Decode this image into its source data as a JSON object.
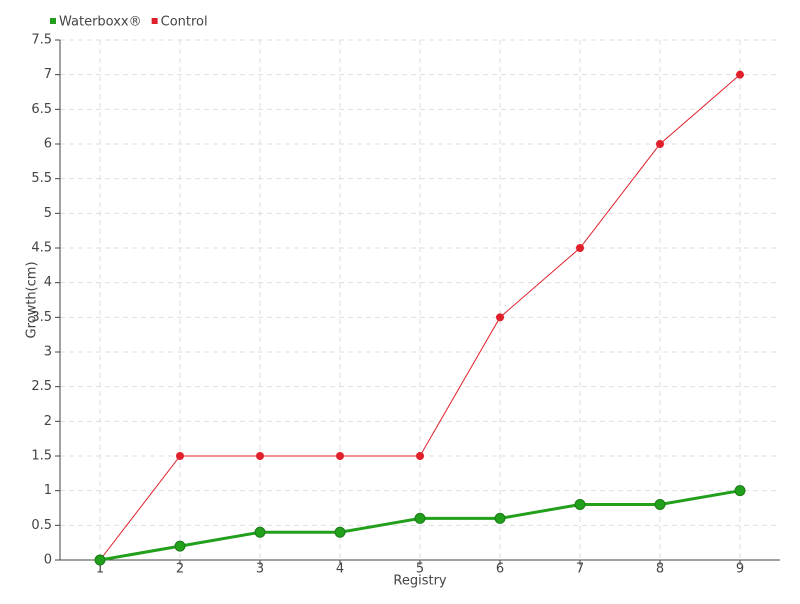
{
  "chart_data": {
    "type": "line",
    "x_label": "Registry",
    "y_label": "Growth(cm)",
    "x": [
      1,
      2,
      3,
      4,
      5,
      6,
      7,
      8,
      9
    ],
    "xlim": [
      0.5,
      9.5
    ],
    "xticks": [
      1,
      2,
      3,
      4,
      5,
      6,
      7,
      8,
      9
    ],
    "ylim": [
      0,
      7.5
    ],
    "yticks": [
      0,
      0.5,
      1,
      1.5,
      2,
      2.5,
      3,
      3.5,
      4,
      4.5,
      5,
      5.5,
      6,
      6.5,
      7,
      7.5
    ],
    "grid": true,
    "legend": "top-left",
    "series": [
      {
        "name": "Waterboxx®",
        "color": "#22a01c",
        "values": [
          0,
          0.2,
          0.4,
          0.4,
          0.6,
          0.6,
          0.8,
          0.8,
          1
        ]
      },
      {
        "name": "Control",
        "color": "#e0202a",
        "values": [
          0,
          1.5,
          1.5,
          1.5,
          1.5,
          3.5,
          4.5,
          6,
          7
        ]
      }
    ]
  }
}
